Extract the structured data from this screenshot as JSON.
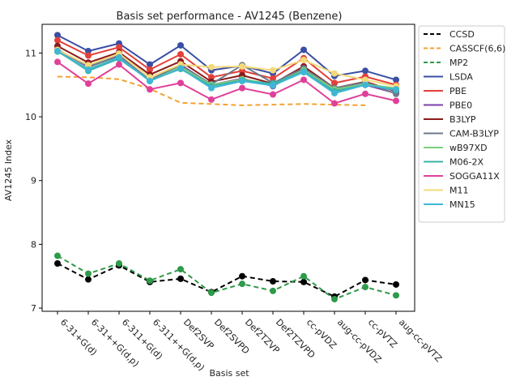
{
  "chart_data": {
    "type": "line",
    "title": "Basis set performance - AV1245 (Benzene)",
    "xlabel": "Basis set",
    "ylabel": "AV1245 Index",
    "ylim": [
      6.95,
      11.45
    ],
    "yticks": [
      7,
      8,
      9,
      10,
      11
    ],
    "grid": false,
    "legend_position": "outside-right",
    "categories": [
      "6-31+G(d)",
      "6-31++G(d,p)",
      "6-311+G(d)",
      "6-311++G(d,p)",
      "Def2SVP",
      "Def2SVPD",
      "Def2TZVP",
      "Def2TZVPD",
      "cc-pVDZ",
      "aug-cc-pVDZ",
      "cc-pVTZ",
      "aug-cc-pVTZ"
    ],
    "series": [
      {
        "name": "CCSD",
        "color": "#000000",
        "dashed": true,
        "markers": true,
        "values": [
          7.7,
          7.45,
          7.67,
          7.41,
          7.46,
          7.25,
          7.5,
          7.42,
          7.41,
          7.18,
          7.44,
          7.37
        ]
      },
      {
        "name": "CASSCF(6,6)",
        "color": "#f5a030",
        "dashed": true,
        "markers": false,
        "values": [
          10.63,
          10.62,
          10.59,
          10.44,
          10.22,
          10.2,
          10.18,
          10.19,
          10.2,
          10.19,
          10.18,
          null
        ]
      },
      {
        "name": "MP2",
        "color": "#2e9a4a",
        "dashed": true,
        "markers": true,
        "values": [
          7.82,
          7.54,
          7.7,
          7.43,
          7.61,
          7.24,
          7.38,
          7.27,
          7.5,
          7.14,
          7.33,
          7.2
        ]
      },
      {
        "name": "LSDA",
        "color": "#3a4ea5",
        "dashed": false,
        "markers": true,
        "values": [
          11.28,
          11.03,
          11.15,
          10.82,
          11.12,
          10.73,
          10.8,
          10.68,
          11.05,
          10.64,
          10.72,
          10.58
        ]
      },
      {
        "name": "PBE",
        "color": "#e2403a",
        "dashed": false,
        "markers": true,
        "values": [
          11.2,
          10.96,
          11.09,
          10.74,
          10.98,
          10.62,
          10.72,
          10.6,
          10.92,
          10.53,
          10.63,
          10.5
        ]
      },
      {
        "name": "PBE0",
        "color": "#7b3fa8",
        "dashed": false,
        "markers": true,
        "values": [
          11.06,
          10.78,
          10.96,
          10.57,
          10.82,
          10.5,
          10.6,
          10.48,
          10.74,
          10.41,
          10.5,
          10.37
        ]
      },
      {
        "name": "B3LYP",
        "color": "#8b1a1a",
        "dashed": false,
        "markers": true,
        "values": [
          11.11,
          10.85,
          11.01,
          10.66,
          10.87,
          10.55,
          10.65,
          10.52,
          10.79,
          10.45,
          10.55,
          10.4
        ]
      },
      {
        "name": "CAM-B3LYP",
        "color": "#6c7a8c",
        "dashed": false,
        "markers": true,
        "values": [
          11.04,
          10.79,
          10.95,
          10.58,
          10.81,
          10.51,
          10.81,
          10.53,
          10.76,
          10.45,
          10.54,
          10.36
        ]
      },
      {
        "name": "wB97XD",
        "color": "#7ccf7c",
        "dashed": false,
        "markers": true,
        "values": [
          11.02,
          10.75,
          10.93,
          10.56,
          10.78,
          10.5,
          10.59,
          10.51,
          10.73,
          10.43,
          10.51,
          10.45
        ]
      },
      {
        "name": "M06-2X",
        "color": "#39b3a8",
        "dashed": false,
        "markers": true,
        "values": [
          11.03,
          10.72,
          10.91,
          10.57,
          10.75,
          10.48,
          10.57,
          10.52,
          10.71,
          10.4,
          10.5,
          10.42
        ]
      },
      {
        "name": "SOGGA11X",
        "color": "#e0409a",
        "dashed": false,
        "markers": true,
        "values": [
          10.86,
          10.52,
          10.82,
          10.43,
          10.53,
          10.27,
          10.45,
          10.35,
          10.58,
          10.21,
          10.36,
          10.25
        ]
      },
      {
        "name": "M11",
        "color": "#f3d97a",
        "dashed": false,
        "markers": true,
        "values": [
          11.05,
          10.81,
          10.99,
          10.62,
          10.82,
          10.78,
          10.79,
          10.73,
          10.89,
          10.68,
          10.58,
          10.48
        ]
      },
      {
        "name": "MN15",
        "color": "#3fb6d6",
        "dashed": false,
        "markers": true,
        "values": [
          11.03,
          10.74,
          10.93,
          10.56,
          10.76,
          10.45,
          10.56,
          10.49,
          10.7,
          10.37,
          10.5,
          10.43
        ]
      }
    ]
  }
}
